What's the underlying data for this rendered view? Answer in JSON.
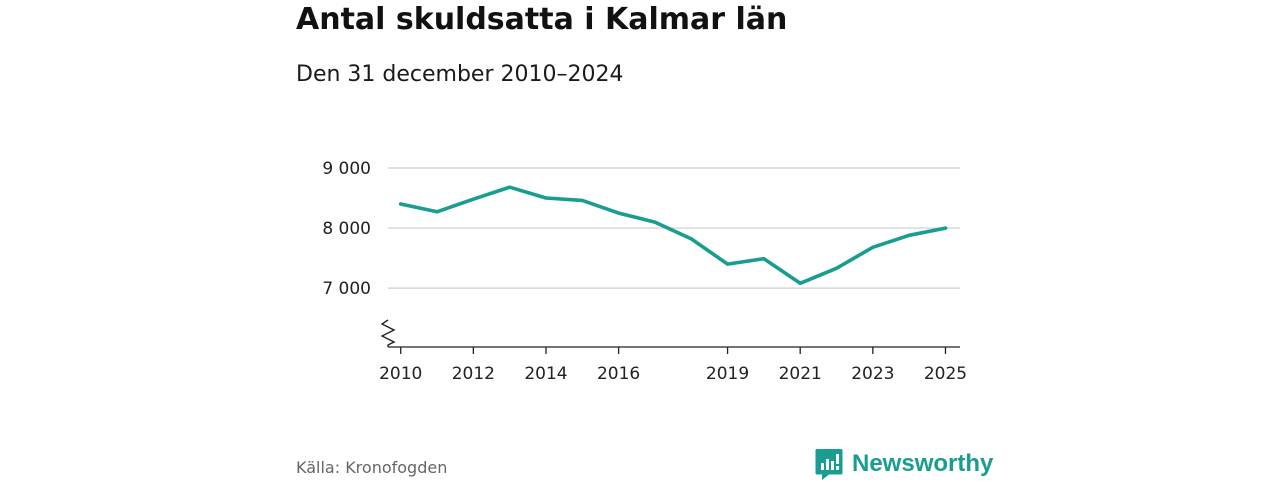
{
  "chart_data": {
    "type": "line",
    "title": "Antal skuldsatta i Kalmar län",
    "subtitle": "Den 31 december 2010–2024",
    "source": "Källa: Kronofogden",
    "brand": "Newsworthy",
    "xlabel": "",
    "ylabel": "",
    "x": [
      2010,
      2011,
      2012,
      2013,
      2014,
      2015,
      2016,
      2017,
      2018,
      2019,
      2020,
      2021,
      2022,
      2023,
      2024,
      2025
    ],
    "series": [
      {
        "name": "Antal skuldsatta",
        "values": [
          8400,
          8270,
          8480,
          8680,
          8500,
          8460,
          8250,
          8100,
          7820,
          7400,
          7490,
          7080,
          7330,
          7680,
          7880,
          8000
        ]
      }
    ],
    "xticks": [
      2010,
      2012,
      2014,
      2016,
      2019,
      2021,
      2023,
      2025
    ],
    "xtick_labels": [
      "2010",
      "2012",
      "2014",
      "2016",
      "2019",
      "2021",
      "2023",
      "2025"
    ],
    "yticks": [
      7000,
      8000,
      9000
    ],
    "ytick_labels": [
      "7 000",
      "8 000",
      "9 000"
    ],
    "xlim": [
      2009.65,
      2025.4
    ],
    "ylim": [
      6020,
      9000
    ],
    "grid": true,
    "axis_break": true,
    "colors": {
      "line": "#199d90",
      "grid": "#d6d6d6",
      "axis": "#222222",
      "brand": "#199d90"
    }
  }
}
